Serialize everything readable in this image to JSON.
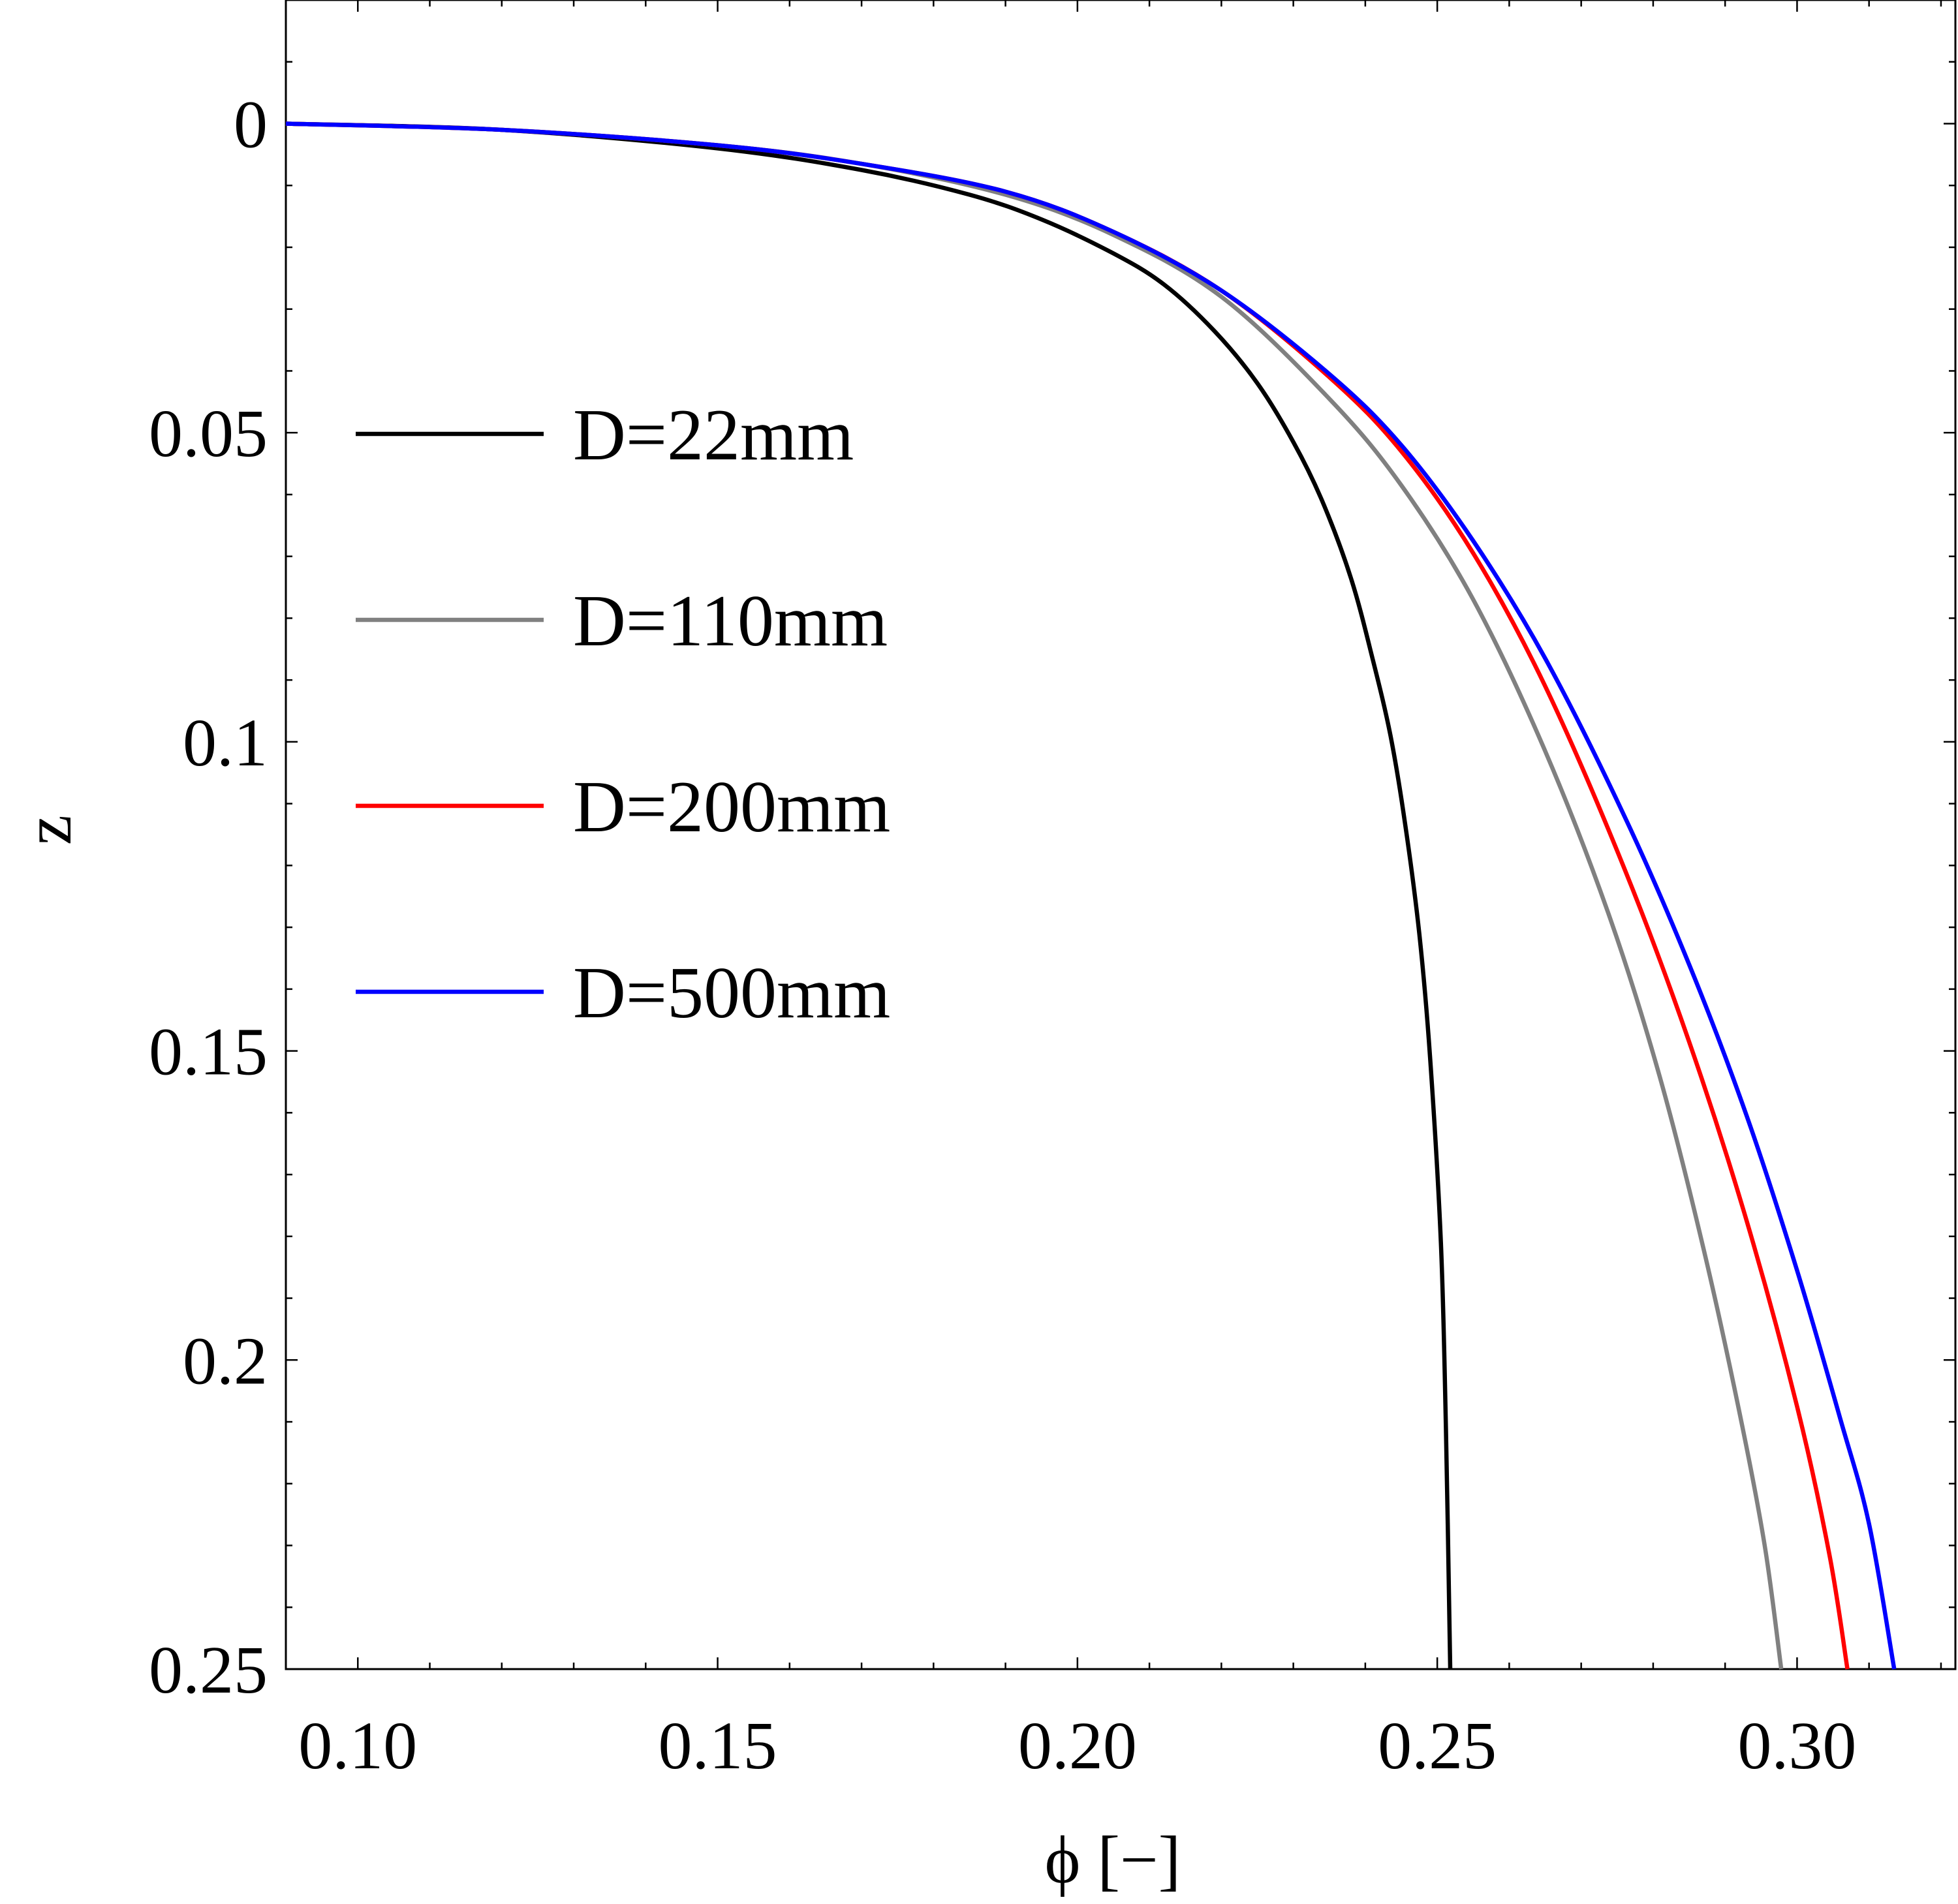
{
  "chart_data": {
    "type": "line",
    "title": "",
    "xlabel": "ϕ [−]",
    "ylabel": "z",
    "xlim": [
      0.09,
      0.322
    ],
    "ylim": [
      -0.02,
      0.25
    ],
    "y_inverted": true,
    "grid": false,
    "legend_position": "upper-left inside",
    "x_ticks": [
      {
        "value": 0.1,
        "label": "0.10"
      },
      {
        "value": 0.15,
        "label": "0.15"
      },
      {
        "value": 0.2,
        "label": "0.20"
      },
      {
        "value": 0.25,
        "label": "0.25"
      },
      {
        "value": 0.3,
        "label": "0.30"
      }
    ],
    "y_ticks": [
      {
        "value": 0,
        "label": "0"
      },
      {
        "value": 0.05,
        "label": "0.05"
      },
      {
        "value": 0.1,
        "label": "0.1"
      },
      {
        "value": 0.15,
        "label": "0.15"
      },
      {
        "value": 0.2,
        "label": "0.2"
      },
      {
        "value": 0.25,
        "label": "0.25"
      }
    ],
    "series": [
      {
        "name": "D=22mm",
        "color": "#000000",
        "x": [
          0.09,
          0.12,
          0.15,
          0.17,
          0.185,
          0.195,
          0.205,
          0.212,
          0.219,
          0.225,
          0.23,
          0.234,
          0.238,
          0.241,
          0.2435,
          0.2455,
          0.2475,
          0.249,
          0.2505,
          0.2512,
          0.2518
        ],
        "y": [
          0.0,
          0.001,
          0.004,
          0.0075,
          0.0115,
          0.0155,
          0.021,
          0.026,
          0.0335,
          0.042,
          0.0515,
          0.061,
          0.0735,
          0.0865,
          0.099,
          0.113,
          0.131,
          0.151,
          0.181,
          0.211,
          0.25
        ]
      },
      {
        "name": "D=110mm",
        "color": "#808080",
        "x": [
          0.09,
          0.12,
          0.15,
          0.17,
          0.19,
          0.205,
          0.22,
          0.235,
          0.245,
          0.255,
          0.265,
          0.274,
          0.281,
          0.287,
          0.292,
          0.2955,
          0.2978
        ],
        "y": [
          0.0,
          0.001,
          0.0035,
          0.0065,
          0.0115,
          0.018,
          0.028,
          0.0445,
          0.0585,
          0.077,
          0.1015,
          0.1285,
          0.1545,
          0.182,
          0.2085,
          0.23,
          0.25
        ]
      },
      {
        "name": "D=200mm",
        "color": "#ff0000",
        "x": [
          0.09,
          0.12,
          0.15,
          0.17,
          0.19,
          0.205,
          0.22,
          0.235,
          0.245,
          0.255,
          0.265,
          0.276,
          0.285,
          0.293,
          0.3,
          0.3045,
          0.307
        ],
        "y": [
          0.0,
          0.001,
          0.0035,
          0.0065,
          0.011,
          0.0175,
          0.027,
          0.041,
          0.053,
          0.0695,
          0.091,
          0.1205,
          0.1485,
          0.1775,
          0.2075,
          0.2315,
          0.25
        ]
      },
      {
        "name": "D=500mm",
        "color": "#0000ff",
        "x": [
          0.09,
          0.12,
          0.15,
          0.17,
          0.19,
          0.205,
          0.22,
          0.235,
          0.245,
          0.255,
          0.265,
          0.276,
          0.285,
          0.293,
          0.3,
          0.306,
          0.31,
          0.3135
        ],
        "y": [
          0.0,
          0.001,
          0.0035,
          0.0065,
          0.011,
          0.0175,
          0.027,
          0.0405,
          0.052,
          0.0675,
          0.0865,
          0.112,
          0.136,
          0.1605,
          0.1855,
          0.2095,
          0.2265,
          0.25
        ]
      }
    ]
  }
}
